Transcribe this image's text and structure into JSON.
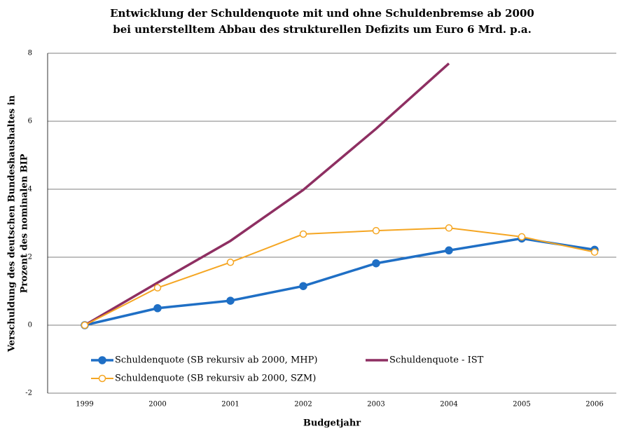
{
  "chart_data": {
    "type": "line",
    "title": [
      "Entwicklung der Schuldenquote mit und ohne Schuldenbremse ab 2000",
      "bei unterstelltem Abbau des strukturellen Defizits um Euro 6 Mrd. p.a."
    ],
    "ylabel": [
      "Verschuldung des deutschen Bundeshaushaltes in",
      "Prozent des nominalen BIP"
    ],
    "xlabel": "Budgetjahr",
    "categories": [
      "1999",
      "2000",
      "2001",
      "2002",
      "2003",
      "2004",
      "2005",
      "2006"
    ],
    "series": [
      {
        "name": "Schuldenquote (SB rekursiv ab 2000, MHP)",
        "color": "#1f6fc5",
        "marker": "filled",
        "values": [
          0,
          0.5,
          0.72,
          1.15,
          1.82,
          2.2,
          2.55,
          2.22
        ]
      },
      {
        "name": "Schuldenquote - IST",
        "color": "#8e2f62",
        "marker": "none",
        "values": [
          0,
          1.25,
          2.48,
          3.98,
          5.78,
          7.7,
          null,
          null
        ]
      },
      {
        "name": "Schuldenquote (SB rekursiv ab 2000, SZM)",
        "color": "#f5a623",
        "marker": "hollow",
        "values": [
          0,
          1.1,
          1.85,
          2.68,
          2.78,
          2.86,
          2.6,
          2.15
        ]
      }
    ],
    "ylim": [
      -2,
      8
    ],
    "yticks": [
      -2,
      0,
      2,
      4,
      6,
      8
    ],
    "grid": true
  }
}
